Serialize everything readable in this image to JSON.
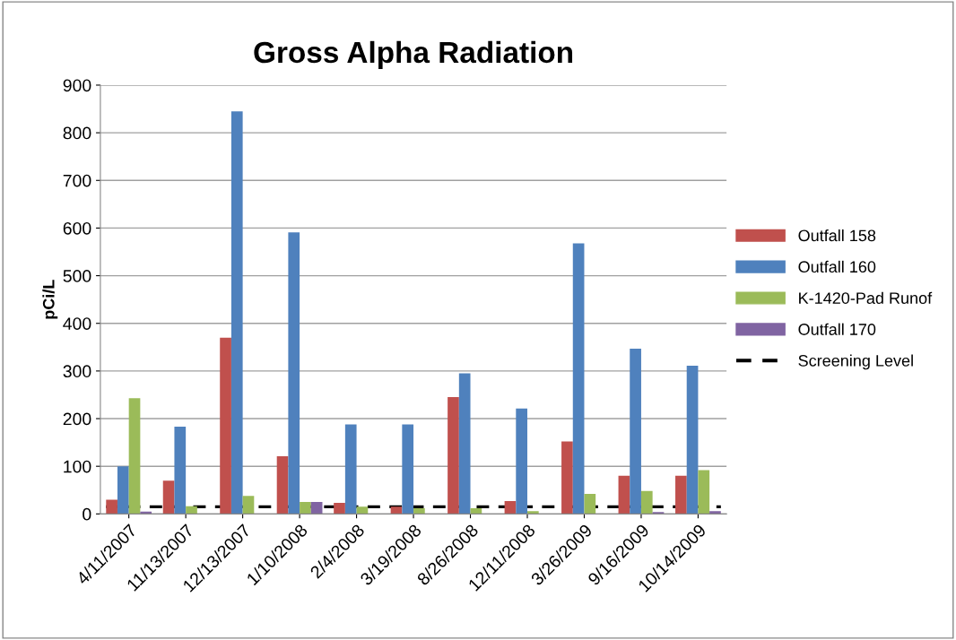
{
  "chart_data": {
    "type": "bar",
    "title": "Gross Alpha Radiation",
    "ylabel": "pCi/L",
    "categories": [
      "4/11/2007",
      "11/13/2007",
      "12/13/2007",
      "1/10/2008",
      "2/4/2008",
      "3/19/2008",
      "8/26/2008",
      "12/11/2008",
      "3/26/2009",
      "9/16/2009",
      "10/14/2009"
    ],
    "series": [
      {
        "name": "Outfall 158",
        "color": "#c0504d",
        "values": [
          30,
          70,
          370,
          121,
          23,
          15,
          245,
          27,
          152,
          80,
          80
        ]
      },
      {
        "name": "Outfall 160",
        "color": "#4f81bd",
        "values": [
          100,
          183,
          845,
          591,
          188,
          188,
          295,
          221,
          568,
          347,
          311
        ]
      },
      {
        "name": "K-1420-Pad Runof",
        "color": "#9bbb59",
        "values": [
          243,
          16,
          38,
          25,
          15,
          12,
          12,
          6,
          42,
          48,
          92
        ]
      },
      {
        "name": "Outfall 170",
        "color": "#8064a2",
        "values": [
          5,
          null,
          null,
          25,
          null,
          null,
          null,
          null,
          null,
          4,
          6
        ]
      }
    ],
    "ref_lines": [
      {
        "axis": "y",
        "value": 15,
        "label": "Screening Level",
        "color": "#000000",
        "line_style": "dashed"
      }
    ],
    "ylim": [
      0,
      900
    ],
    "yticks": [
      0,
      100,
      200,
      300,
      400,
      500,
      600,
      700,
      800,
      900
    ],
    "grid": "y",
    "legend": "right"
  }
}
